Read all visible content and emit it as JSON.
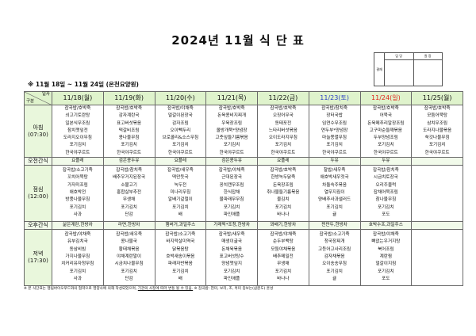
{
  "title": "2024년 11월 식 단 표",
  "approval": {
    "label": "결재",
    "columns": [
      "담 당",
      "원 장"
    ]
  },
  "subtitle": "※ 11월 18일 ~ 11월 24일 (온천요양원)",
  "corner": {
    "top": "일자",
    "bottom": "구분"
  },
  "row_labels": {
    "breakfast": "아침",
    "breakfast_time": "(07:30)",
    "am_snack": "오전간식",
    "lunch": "점심",
    "lunch_time": "(12:00)",
    "pm_snack": "오후간식",
    "dinner": "저녁",
    "dinner_time": "(17:30)"
  },
  "colors": {
    "saturday": "#2b3fc4",
    "sunday": "#e0261e",
    "header_bg": "#dff3cc"
  },
  "days": [
    {
      "date": "11/18(월)",
      "color": "#111111",
      "breakfast": [
        "잡곡밥/호박죽",
        "쇠고기토란탕",
        "일본식무조림",
        "참치깻잎전",
        "도라지오이무침",
        "포기김치",
        "한국야쿠르트"
      ],
      "am_snack": "요플레",
      "lunch": [
        "잡곡밥/소고기죽",
        "꼬치어묵탕",
        "가자미조림",
        "애호박전",
        "방풍나물무침",
        "포기김치",
        "사과"
      ],
      "pm_snack": "삶은계란,한방차",
      "dinner": [
        "잡곡밥/야채죽",
        "유부김치국",
        "동삼비빔",
        "가지나물무침",
        "치커리유자청무침",
        "포기김치",
        "사과"
      ]
    },
    {
      "date": "11/19(화)",
      "color": "#111111",
      "breakfast": [
        "잡곡밥/호박죽",
        "감자계란국",
        "표고버섯볶음",
        "떡갈비조림",
        "콩나물무침",
        "포기김치",
        "한국야쿠르트"
      ],
      "am_snack": "검은콩두유",
      "lunch": [
        "잡곡밥/참치죽",
        "배추우거지된장국",
        "소불고기",
        "홍합살부추전",
        "무생채",
        "포기김치",
        "단감"
      ],
      "pm_snack": "라면,한방차",
      "dinner": [
        "잡곡밥/새우죽",
        "콩나물국",
        "황태채볶음",
        "야채계란말이",
        "시금치나물무침",
        "포기김치",
        "단감"
      ]
    },
    {
      "date": "11/20(수)",
      "color": "#111111",
      "breakfast": [
        "잡곡밥/야채죽",
        "얼갈이된장국",
        "감자조림",
        "오이빽두리",
        "브로콜리&소스무침",
        "포기김치",
        "한국야쿠르트"
      ],
      "am_snack": "요플레",
      "lunch": [
        "잡곡밥/새우죽",
        "떡만둣국",
        "녹두전",
        "미나리무침",
        "알배기겉절이",
        "포기김치",
        "배"
      ],
      "pm_snack": "햄버거,과일주스",
      "dinner": [
        "잡곡밥/소고기죽",
        "바지락살미역국",
        "닭볶음탕",
        "호박새송이볶음",
        "파래자반볶음",
        "포기김치",
        "배"
      ]
    },
    {
      "date": "11/21(목)",
      "color": "#111111",
      "breakfast": [
        "잡곡밥/호박죽",
        "돈육콩비지찌개",
        "우육장조림",
        "올방개묵*양념장",
        "고춧잎들기름볶음",
        "포기김치",
        "한국야쿠르트"
      ],
      "am_snack": "검은콩두유",
      "lunch": [
        "잡곡밥/야채죽",
        "근대된장국",
        "꽁치캔무조림",
        "한식잡채",
        "물파래무무침",
        "포기김치",
        "파인애플"
      ],
      "pm_snack": "가래떡*조청,한방차",
      "dinner": [
        "잡곡밥/새우죽",
        "매생이굴국",
        "돈채육볶음",
        "표고버섯탕수",
        "양념깻잎지",
        "포기김치",
        "파인애플"
      ]
    },
    {
      "date": "11/22(금)",
      "color": "#111111",
      "breakfast": [
        "잡곡밥/호박죽",
        "오징어무국",
        "동태포전",
        "느타리버섯볶음",
        "오이도라지무침",
        "포기김치",
        "한국야쿠르트"
      ],
      "am_snack": "요플레",
      "lunch": [
        "잡곡밥/호박죽",
        "한방녹두닭죽",
        "돈육장조림",
        "취나물들기름볶음",
        "물김치",
        "포기김치",
        "바나나"
      ],
      "pm_snack": "꽈배기,한방차",
      "dinner": [
        "잡곡밥/야채죽",
        "순두부백탕",
        "모둠야채볶음",
        "배추메밀전",
        "무생채",
        "포기김치",
        "바나나"
      ]
    },
    {
      "date": "11/23(토)",
      "color": "#2b3fc4",
      "breakfast": [
        "잡곡밥/참치죽",
        "장터국밥",
        "임연수무조림",
        "연두부*양념장",
        "마늘쫑멸무침",
        "포기김치",
        "한국야쿠르트"
      ],
      "am_snack": "두유",
      "lunch": [
        "찰밥/새우죽",
        "애호박새우젓국",
        "차돌숙주볶음",
        "열무지짐이",
        "양배추사과샐러드",
        "포기김치",
        "귤"
      ],
      "pm_snack": "찐만두,한방차",
      "dinner": [
        "잡곡밥/소고기죽",
        "청국장찌개",
        "고등어고사리조림",
        "감자채볶음",
        "오이송송무침",
        "포기김치",
        "귤"
      ]
    },
    {
      "date": "11/24(일)",
      "color": "#e0261e",
      "breakfast": [
        "잡곡밥/호박죽",
        "어묵국",
        "돈육메추리알장조림",
        "고구마순들깨볶음",
        "두부양념조림",
        "포기김치",
        "한국야쿠르트"
      ],
      "am_snack": "두유",
      "lunch": [
        "잡곡밥/참치죽",
        "시금치토장국",
        "오리주물럭",
        "잡채어묵조림",
        "참나물무침",
        "포기김치",
        "포도"
      ],
      "pm_snack": "호박수프,과일주스",
      "dinner": [
        "잡곡밥/야채죽",
        "뼈없는우거지탕",
        "북어조림",
        "계란찜",
        "얼갈이지짐",
        "포기김치",
        "포도"
      ]
    },
    {
      "date": "11/25(월)",
      "color": "#111111",
      "breakfast": [
        "잡곡밥/호박죽",
        "모둠어묵탕",
        "삼치무조림",
        "도라지나물볶음",
        "쑥갓나물무침",
        "포기김치",
        "한국야쿠르트"
      ],
      "am_snack": "",
      "lunch": [],
      "pm_snack": "",
      "dinner": []
    }
  ],
  "footer": {
    "note1": "※ 본 식단표는 행림바이오푸드와의 협약으로 영양사에 의해 작성되었으며, ",
    "note1_underlined": "기관의 사정에 따라 변동 될 수 있음.",
    "note2": " ※ 잡곡밥: 현미, 보리, 조, 흑미 중보는(삼분도) 혼성"
  }
}
